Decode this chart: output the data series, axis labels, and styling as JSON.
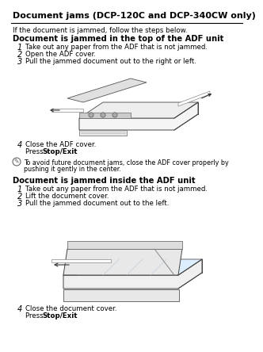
{
  "bg_color": "#ffffff",
  "title": "Document jams (DCP-120C and DCP-340CW only)",
  "intro": "If the document is jammed, follow the steps below.",
  "section1_title": "Document is jammed in the top of the ADF unit",
  "section1_steps": [
    "Take out any paper from the ADF that is not jammed.",
    "Open the ADF cover.",
    "Pull the jammed document out to the right or left."
  ],
  "section1_step4": "Close the ADF cover.",
  "section1_step4b": "Stop/Exit",
  "note_text1": "To avoid future document jams, close the ADF cover properly by",
  "note_text2": "pushing it gently in the center.",
  "section2_title": "Document is jammed inside the ADF unit",
  "section2_steps": [
    "Take out any paper from the ADF that is not jammed.",
    "Lift the document cover.",
    "Pull the jammed document out to the left."
  ],
  "section2_step4": "Close the document cover.",
  "section2_step4b": "Stop/Exit",
  "title_fontsize": 8.0,
  "section_fontsize": 7.2,
  "body_fontsize": 6.2,
  "small_fontsize": 5.8,
  "num_fontsize": 7.0
}
